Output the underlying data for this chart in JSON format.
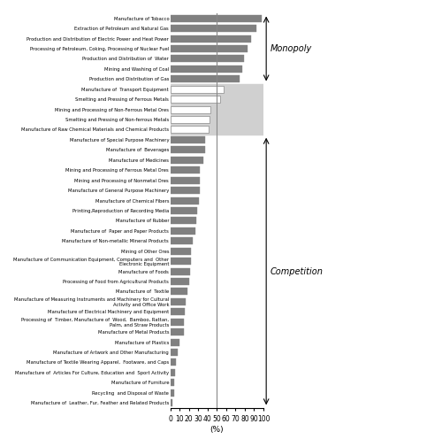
{
  "categories": [
    "Manufacture of Tobacco",
    "Extraction of Petroleum and Natural Gas",
    "Production and Distribution of Electric Power and Heat Power",
    "Processing of Petroleum, Coking, Processing of Nuclear Fuel",
    "Production and Distribution of  Water",
    "Mining and Washing of Coal",
    "Production and Distribution of Gas",
    "Manufacture of  Transport Equipment",
    "Smelting and Pressing of Ferrous Metals",
    "Mining and Processing of Non-Ferrous Metal Ores",
    "Smelting and Pressing of Non-ferrous Metals",
    "Manufacture of Raw Chemical Materials and Chemical Products",
    "Manufacture of Special Purpose Machinery",
    "Manufacture of  Beverages",
    "Manufacture of Medicines",
    "Mining and Processing of Ferrous Metal Ores",
    "Mining and Processing of Nonmetal Ores",
    "Manufacture of General Purpose Machinery",
    "Manufacture of Chemical Fibers",
    "Printing,Reproduction of Recording Media",
    "Manufacture of Rubber",
    "Manufacture of  Paper and Paper Products",
    "Manufacture of Non-metallic Mineral Products",
    "Mining of Other Ores",
    "Manufacture of Communication Equipment, Computers and  Other\nElectronic Equipment",
    "Manufacture of Foods",
    "Processing of Food from Agricultural Products",
    "Manufacture of  Textile",
    "Manufacture of Measuring Instruments and Machinery for Cultural\nActivity and Office Work",
    "Manufacture of Electrical Machinery and Equipment",
    "Processing of  Timber, Manufacture of  Wood,  Bamboo, Rattan,\nPalm, and Straw Products",
    "Manufacture of Metal Products",
    "Manufacture of Plastics",
    "Manufacture of Artwork and Other Manufacturing",
    "Manufacture of Textile Wearing Apparel,  Footware, and Caps",
    "Manufacture of  Articles For Culture, Education and  Sport Activity",
    "Manufacture of Furniture",
    "Recycling  and Disposal of Waste",
    "Manufacture of  Leather, Fur, Feather and Related Products"
  ],
  "values": [
    98,
    92,
    87,
    83,
    79,
    77,
    74,
    57,
    54,
    43,
    42,
    41,
    37,
    37,
    36,
    32,
    32,
    32,
    31,
    29,
    28,
    27,
    24,
    22,
    22,
    21,
    20,
    18,
    17,
    16,
    15,
    15,
    10,
    8,
    6,
    5,
    4,
    4,
    2
  ],
  "shaded_region_indices": [
    7,
    8,
    9,
    10,
    11
  ],
  "shaded_bg_color": "#d0d0d0",
  "dark_bar_color": "#808080",
  "white_bar_color": "#ffffff",
  "vline_x": 50,
  "vline_color": "#888888",
  "xlabel": "(%)",
  "xlim": [
    0,
    100
  ],
  "xticks": [
    0,
    10,
    20,
    30,
    40,
    50,
    60,
    70,
    80,
    90,
    100
  ],
  "monopoly_label": "Monopoly",
  "competition_label": "Competition",
  "figsize": [
    5.0,
    5.05
  ],
  "dpi": 100
}
